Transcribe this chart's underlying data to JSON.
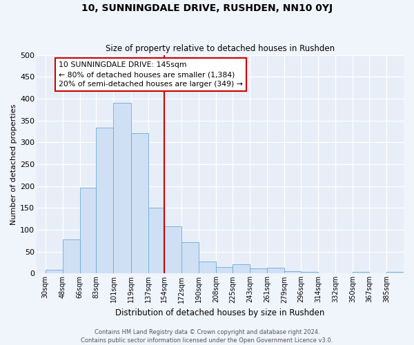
{
  "title": "10, SUNNINGDALE DRIVE, RUSHDEN, NN10 0YJ",
  "subtitle": "Size of property relative to detached houses in Rushden",
  "xlabel": "Distribution of detached houses by size in Rushden",
  "ylabel": "Number of detached properties",
  "categories": [
    "30sqm",
    "48sqm",
    "66sqm",
    "83sqm",
    "101sqm",
    "119sqm",
    "137sqm",
    "154sqm",
    "172sqm",
    "190sqm",
    "208sqm",
    "225sqm",
    "243sqm",
    "261sqm",
    "279sqm",
    "296sqm",
    "314sqm",
    "332sqm",
    "350sqm",
    "367sqm",
    "385sqm"
  ],
  "values": [
    8,
    78,
    197,
    333,
    390,
    321,
    150,
    108,
    72,
    28,
    15,
    21,
    12,
    13,
    6,
    4,
    0,
    0,
    3,
    0,
    3
  ],
  "cat_vals": [
    30,
    48,
    66,
    83,
    101,
    119,
    137,
    154,
    172,
    190,
    208,
    225,
    243,
    261,
    279,
    296,
    314,
    332,
    350,
    367,
    385
  ],
  "bar_color": "#cfe0f5",
  "bar_edge_color": "#6aaad4",
  "vline_x": 154,
  "vline_color": "#cc0000",
  "ylim": [
    0,
    500
  ],
  "yticks": [
    0,
    50,
    100,
    150,
    200,
    250,
    300,
    350,
    400,
    450,
    500
  ],
  "annotation_title": "10 SUNNINGDALE DRIVE: 145sqm",
  "annotation_line1": "← 80% of detached houses are smaller (1,384)",
  "annotation_line2": "20% of semi-detached houses are larger (349) →",
  "annotation_box_color": "#ffffff",
  "annotation_box_edge_color": "#cc0000",
  "footer1": "Contains HM Land Registry data © Crown copyright and database right 2024.",
  "footer2": "Contains public sector information licensed under the Open Government Licence v3.0.",
  "bg_color": "#f0f4fb",
  "plot_bg_color": "#e8eef8"
}
